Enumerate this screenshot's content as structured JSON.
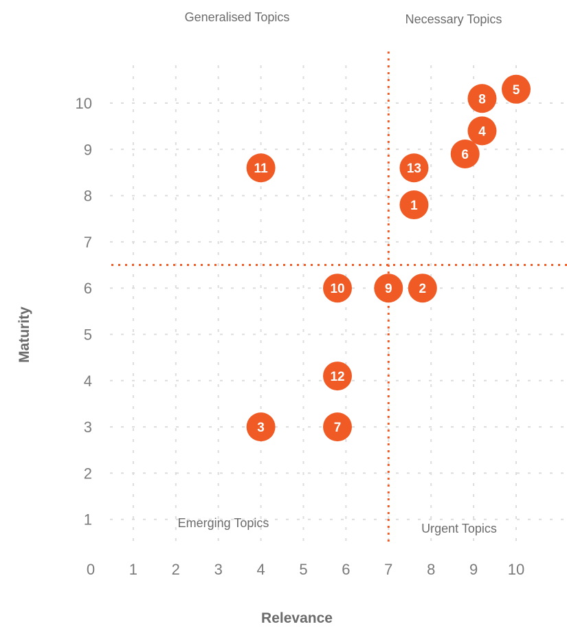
{
  "colors": {
    "accent": "#f05a24",
    "grid": "#dcdcdc",
    "text": "#6b6b6b"
  },
  "chart_data": {
    "type": "scatter",
    "xlabel": "Relevance",
    "ylabel": "Maturity",
    "x_ticks": [
      "0",
      "1",
      "2",
      "3",
      "4",
      "5",
      "6",
      "7",
      "8",
      "9",
      "10"
    ],
    "y_ticks": [
      "1",
      "2",
      "3",
      "4",
      "5",
      "6",
      "7",
      "8",
      "9",
      "10"
    ],
    "xlim": [
      0,
      11
    ],
    "ylim": [
      0,
      11
    ],
    "grid": true,
    "threshold_x": 7,
    "threshold_y": 6.5,
    "quadrants": {
      "top_left": "Generalised Topics",
      "top_right": "Necessary Topics",
      "bottom_left": "Emerging Topics",
      "bottom_right": "Urgent Topics"
    },
    "points": [
      {
        "label": "1",
        "x": 7.6,
        "y": 7.8
      },
      {
        "label": "2",
        "x": 7.8,
        "y": 6.0
      },
      {
        "label": "3",
        "x": 4.0,
        "y": 3.0
      },
      {
        "label": "4",
        "x": 9.2,
        "y": 9.4
      },
      {
        "label": "5",
        "x": 10.0,
        "y": 10.3
      },
      {
        "label": "6",
        "x": 8.8,
        "y": 8.9
      },
      {
        "label": "7",
        "x": 5.8,
        "y": 3.0
      },
      {
        "label": "8",
        "x": 9.2,
        "y": 10.1
      },
      {
        "label": "9",
        "x": 7.0,
        "y": 6.0
      },
      {
        "label": "10",
        "x": 5.8,
        "y": 6.0
      },
      {
        "label": "11",
        "x": 4.0,
        "y": 8.6
      },
      {
        "label": "12",
        "x": 5.8,
        "y": 4.1
      },
      {
        "label": "13",
        "x": 7.6,
        "y": 8.6
      }
    ]
  }
}
